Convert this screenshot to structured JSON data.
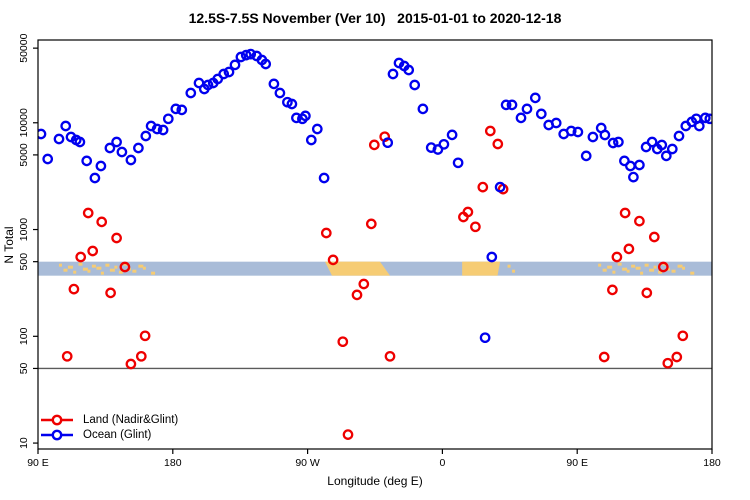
{
  "chart_data": {
    "type": "scatter",
    "title": "12.5S-7.5S November (Ver 10)   2015-01-01 to 2020-12-18",
    "xlabel": "Longitude (deg E)",
    "ylabel": "N Total",
    "x_axis": {
      "range_deg": [
        90,
        540
      ],
      "ticks": [
        {
          "value": 90,
          "label": "90 E"
        },
        {
          "value": 180,
          "label": "180"
        },
        {
          "value": 270,
          "label": "90 W"
        },
        {
          "value": 360,
          "label": "0"
        },
        {
          "value": 450,
          "label": "90 E"
        },
        {
          "value": 540,
          "label": "180"
        }
      ]
    },
    "y_axis": {
      "scale": "log10",
      "range": [
        8.8,
        59600
      ],
      "ticks": [
        10,
        50,
        100,
        500,
        1000,
        5000,
        10000,
        50000
      ]
    },
    "reference_line": {
      "N": 50,
      "color": "#5a5a5a"
    },
    "map_band": {
      "N_top": 500,
      "ocean_color": "#a9bcd8",
      "land_color": "#f6cc74",
      "land_blocks": [
        {
          "name": "south-america",
          "poly": [
            [
              281.6,
              0
            ],
            [
              318.3,
              0
            ],
            [
              325,
              1
            ],
            [
              286.3,
              1
            ]
          ]
        },
        {
          "name": "africa",
          "poly": [
            [
              373.2,
              0
            ],
            [
              398.5,
              0
            ],
            [
              396.8,
              1
            ],
            [
              373.2,
              1
            ]
          ]
        }
      ],
      "island_speckles_lon": [
        105,
        108,
        111,
        114.5,
        118,
        121,
        124,
        127,
        130,
        133,
        136,
        139,
        142,
        145,
        148,
        151,
        154,
        158,
        161,
        166.5
      ],
      "madagascar_lon": [
        404.5,
        407.5
      ],
      "wrap_offset_deg": 360
    },
    "series": [
      {
        "name": "Land (Nadir&Glint)",
        "color": "#ee0000",
        "points": [
          [
            123.5,
            1430
          ],
          [
            132.5,
            1180
          ],
          [
            142.5,
            834
          ],
          [
            126.5,
            630
          ],
          [
            118.5,
            553
          ],
          [
            148,
            446
          ],
          [
            114,
            277
          ],
          [
            138.5,
            255
          ],
          [
            161.5,
            101
          ],
          [
            109.5,
            65
          ],
          [
            159,
            65
          ],
          [
            152,
            55
          ],
          [
            282.5,
            929
          ],
          [
            312.5,
            1130
          ],
          [
            314.5,
            6200
          ],
          [
            321.5,
            7400
          ],
          [
            287,
            519
          ],
          [
            307.5,
            309
          ],
          [
            303,
            244
          ],
          [
            293.5,
            89
          ],
          [
            325,
            65
          ],
          [
            297,
            12
          ],
          [
            374,
            1310
          ],
          [
            377,
            1460
          ],
          [
            382,
            1060
          ],
          [
            387,
            2500
          ],
          [
            400.5,
            2390
          ],
          [
            392,
            8370
          ],
          [
            397,
            6330
          ],
          [
            482,
            1430
          ],
          [
            491.5,
            1200
          ],
          [
            501.5,
            851
          ],
          [
            484.5,
            658
          ],
          [
            476.5,
            553
          ],
          [
            507.5,
            446
          ],
          [
            473.5,
            272
          ],
          [
            496.5,
            255
          ],
          [
            520.5,
            101
          ],
          [
            468,
            64
          ],
          [
            516.5,
            64
          ],
          [
            510.5,
            56
          ]
        ]
      },
      {
        "name": "Ocean (Glint)",
        "color": "#0000ee",
        "points": [
          [
            92,
            7850
          ],
          [
            96.5,
            4580
          ],
          [
            104,
            7050
          ],
          [
            108.5,
            9330
          ],
          [
            112,
            7360
          ],
          [
            115.5,
            6900
          ],
          [
            118,
            6600
          ],
          [
            122.5,
            4390
          ],
          [
            128,
            3040
          ],
          [
            132,
            3940
          ],
          [
            138,
            5800
          ],
          [
            142.5,
            6600
          ],
          [
            146,
            5320
          ],
          [
            152,
            4480
          ],
          [
            157,
            5800
          ],
          [
            162,
            7520
          ],
          [
            165.5,
            9330
          ],
          [
            169.5,
            8740
          ],
          [
            173.5,
            8560
          ],
          [
            177,
            10900
          ],
          [
            182,
            13500
          ],
          [
            186,
            13200
          ],
          [
            192,
            19000
          ],
          [
            197.5,
            23600
          ],
          [
            201,
            20700
          ],
          [
            203.5,
            22600
          ],
          [
            207,
            23600
          ],
          [
            210,
            25700
          ],
          [
            214,
            28600
          ],
          [
            217.5,
            29900
          ],
          [
            221.5,
            34800
          ],
          [
            225.5,
            41300
          ],
          [
            229,
            43000
          ],
          [
            232,
            44000
          ],
          [
            236,
            42200
          ],
          [
            239.5,
            38700
          ],
          [
            242,
            35500
          ],
          [
            247.5,
            23100
          ],
          [
            251.5,
            19000
          ],
          [
            256.5,
            15600
          ],
          [
            259.5,
            15000
          ],
          [
            262.5,
            11100
          ],
          [
            266.5,
            10900
          ],
          [
            268.5,
            11600
          ],
          [
            272.5,
            6900
          ],
          [
            276.5,
            8740
          ],
          [
            281,
            3040
          ],
          [
            323.5,
            6500
          ],
          [
            327,
            28600
          ],
          [
            331,
            36300
          ],
          [
            334.5,
            34000
          ],
          [
            337.5,
            31200
          ],
          [
            341.5,
            22600
          ],
          [
            347,
            13500
          ],
          [
            352.5,
            5850
          ],
          [
            357,
            5620
          ],
          [
            361,
            6280
          ],
          [
            366.5,
            7700
          ],
          [
            370.5,
            4220
          ],
          [
            388.5,
            97
          ],
          [
            393,
            553
          ],
          [
            398.5,
            2500
          ],
          [
            402.5,
            14700
          ],
          [
            406.5,
            14700
          ],
          [
            412.5,
            11100
          ],
          [
            416.5,
            13500
          ],
          [
            422,
            17100
          ],
          [
            426,
            12100
          ],
          [
            431,
            9530
          ],
          [
            436,
            9950
          ],
          [
            441,
            7850
          ],
          [
            446,
            8370
          ],
          [
            450.5,
            8200
          ],
          [
            456,
            4890
          ],
          [
            460.5,
            7360
          ],
          [
            466,
            8940
          ],
          [
            468.5,
            7690
          ],
          [
            474,
            6470
          ],
          [
            477.5,
            6610
          ],
          [
            481.5,
            4390
          ],
          [
            485.5,
            3940
          ],
          [
            487.5,
            3100
          ],
          [
            491.5,
            4020
          ],
          [
            496,
            5930
          ],
          [
            500,
            6610
          ],
          [
            503.5,
            5680
          ],
          [
            506.5,
            6190
          ],
          [
            509.5,
            4890
          ],
          [
            513.5,
            5680
          ],
          [
            518,
            7520
          ],
          [
            522.5,
            9330
          ],
          [
            526.5,
            10200
          ],
          [
            529.5,
            10900
          ],
          [
            531.5,
            9330
          ],
          [
            535.5,
            11100
          ],
          [
            538.5,
            10900
          ]
        ]
      }
    ],
    "legend": {
      "position": "bottom-left"
    }
  }
}
